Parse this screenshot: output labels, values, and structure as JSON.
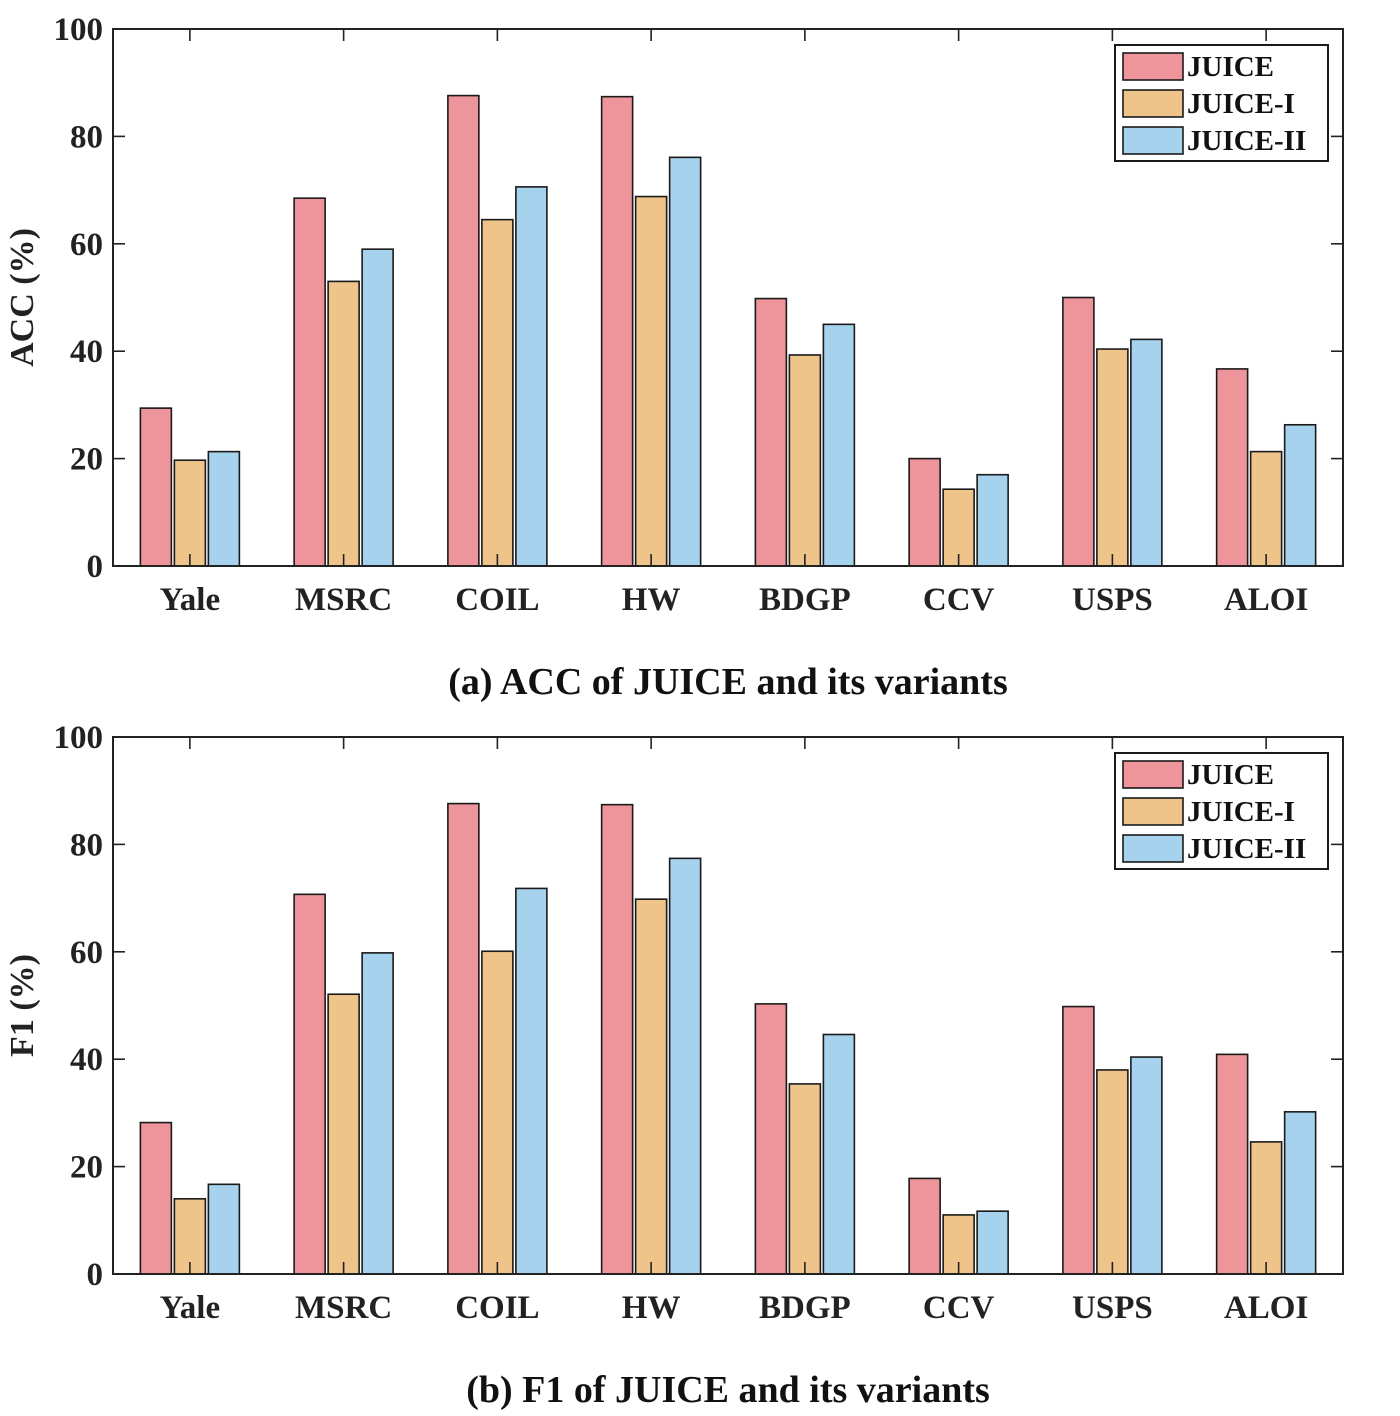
{
  "chart_data": [
    {
      "type": "bar",
      "title": "(a) ACC of JUICE and its variants",
      "xlabel": "",
      "ylabel": "ACC (%)",
      "ylim": [
        0,
        100
      ],
      "yticks": [
        "0",
        "20",
        "40",
        "60",
        "80",
        "100"
      ],
      "categories": [
        "Yale",
        "MSRC",
        "COIL",
        "HW",
        "BDGP",
        "CCV",
        "USPS",
        "ALOI"
      ],
      "legend_position": "top-right",
      "series": [
        {
          "name": "JUICE",
          "color": "#ED959A",
          "values": [
            29.4,
            68.5,
            87.6,
            87.4,
            49.8,
            20.0,
            50.0,
            36.7
          ]
        },
        {
          "name": "JUICE-I",
          "color": "#EFC48A",
          "values": [
            19.7,
            53.0,
            64.5,
            68.8,
            39.3,
            14.3,
            40.4,
            21.3
          ]
        },
        {
          "name": "JUICE-II",
          "color": "#A6D2EE",
          "values": [
            21.3,
            59.0,
            70.6,
            76.1,
            45.0,
            17.0,
            42.2,
            26.3
          ]
        }
      ]
    },
    {
      "type": "bar",
      "title": "(b) F1 of JUICE and its variants",
      "xlabel": "",
      "ylabel": "F1 (%)",
      "ylim": [
        0,
        100
      ],
      "yticks": [
        "0",
        "20",
        "40",
        "60",
        "80",
        "100"
      ],
      "categories": [
        "Yale",
        "MSRC",
        "COIL",
        "HW",
        "BDGP",
        "CCV",
        "USPS",
        "ALOI"
      ],
      "legend_position": "top-right",
      "series": [
        {
          "name": "JUICE",
          "color": "#ED959A",
          "values": [
            28.2,
            70.7,
            87.6,
            87.4,
            50.3,
            17.8,
            49.8,
            40.9
          ]
        },
        {
          "name": "JUICE-I",
          "color": "#EFC48A",
          "values": [
            14.0,
            52.1,
            60.1,
            69.8,
            35.4,
            11.0,
            38.0,
            24.6
          ]
        },
        {
          "name": "JUICE-II",
          "color": "#A6D2EE",
          "values": [
            16.7,
            59.8,
            71.8,
            77.4,
            44.6,
            11.7,
            40.4,
            30.2
          ]
        }
      ]
    }
  ]
}
